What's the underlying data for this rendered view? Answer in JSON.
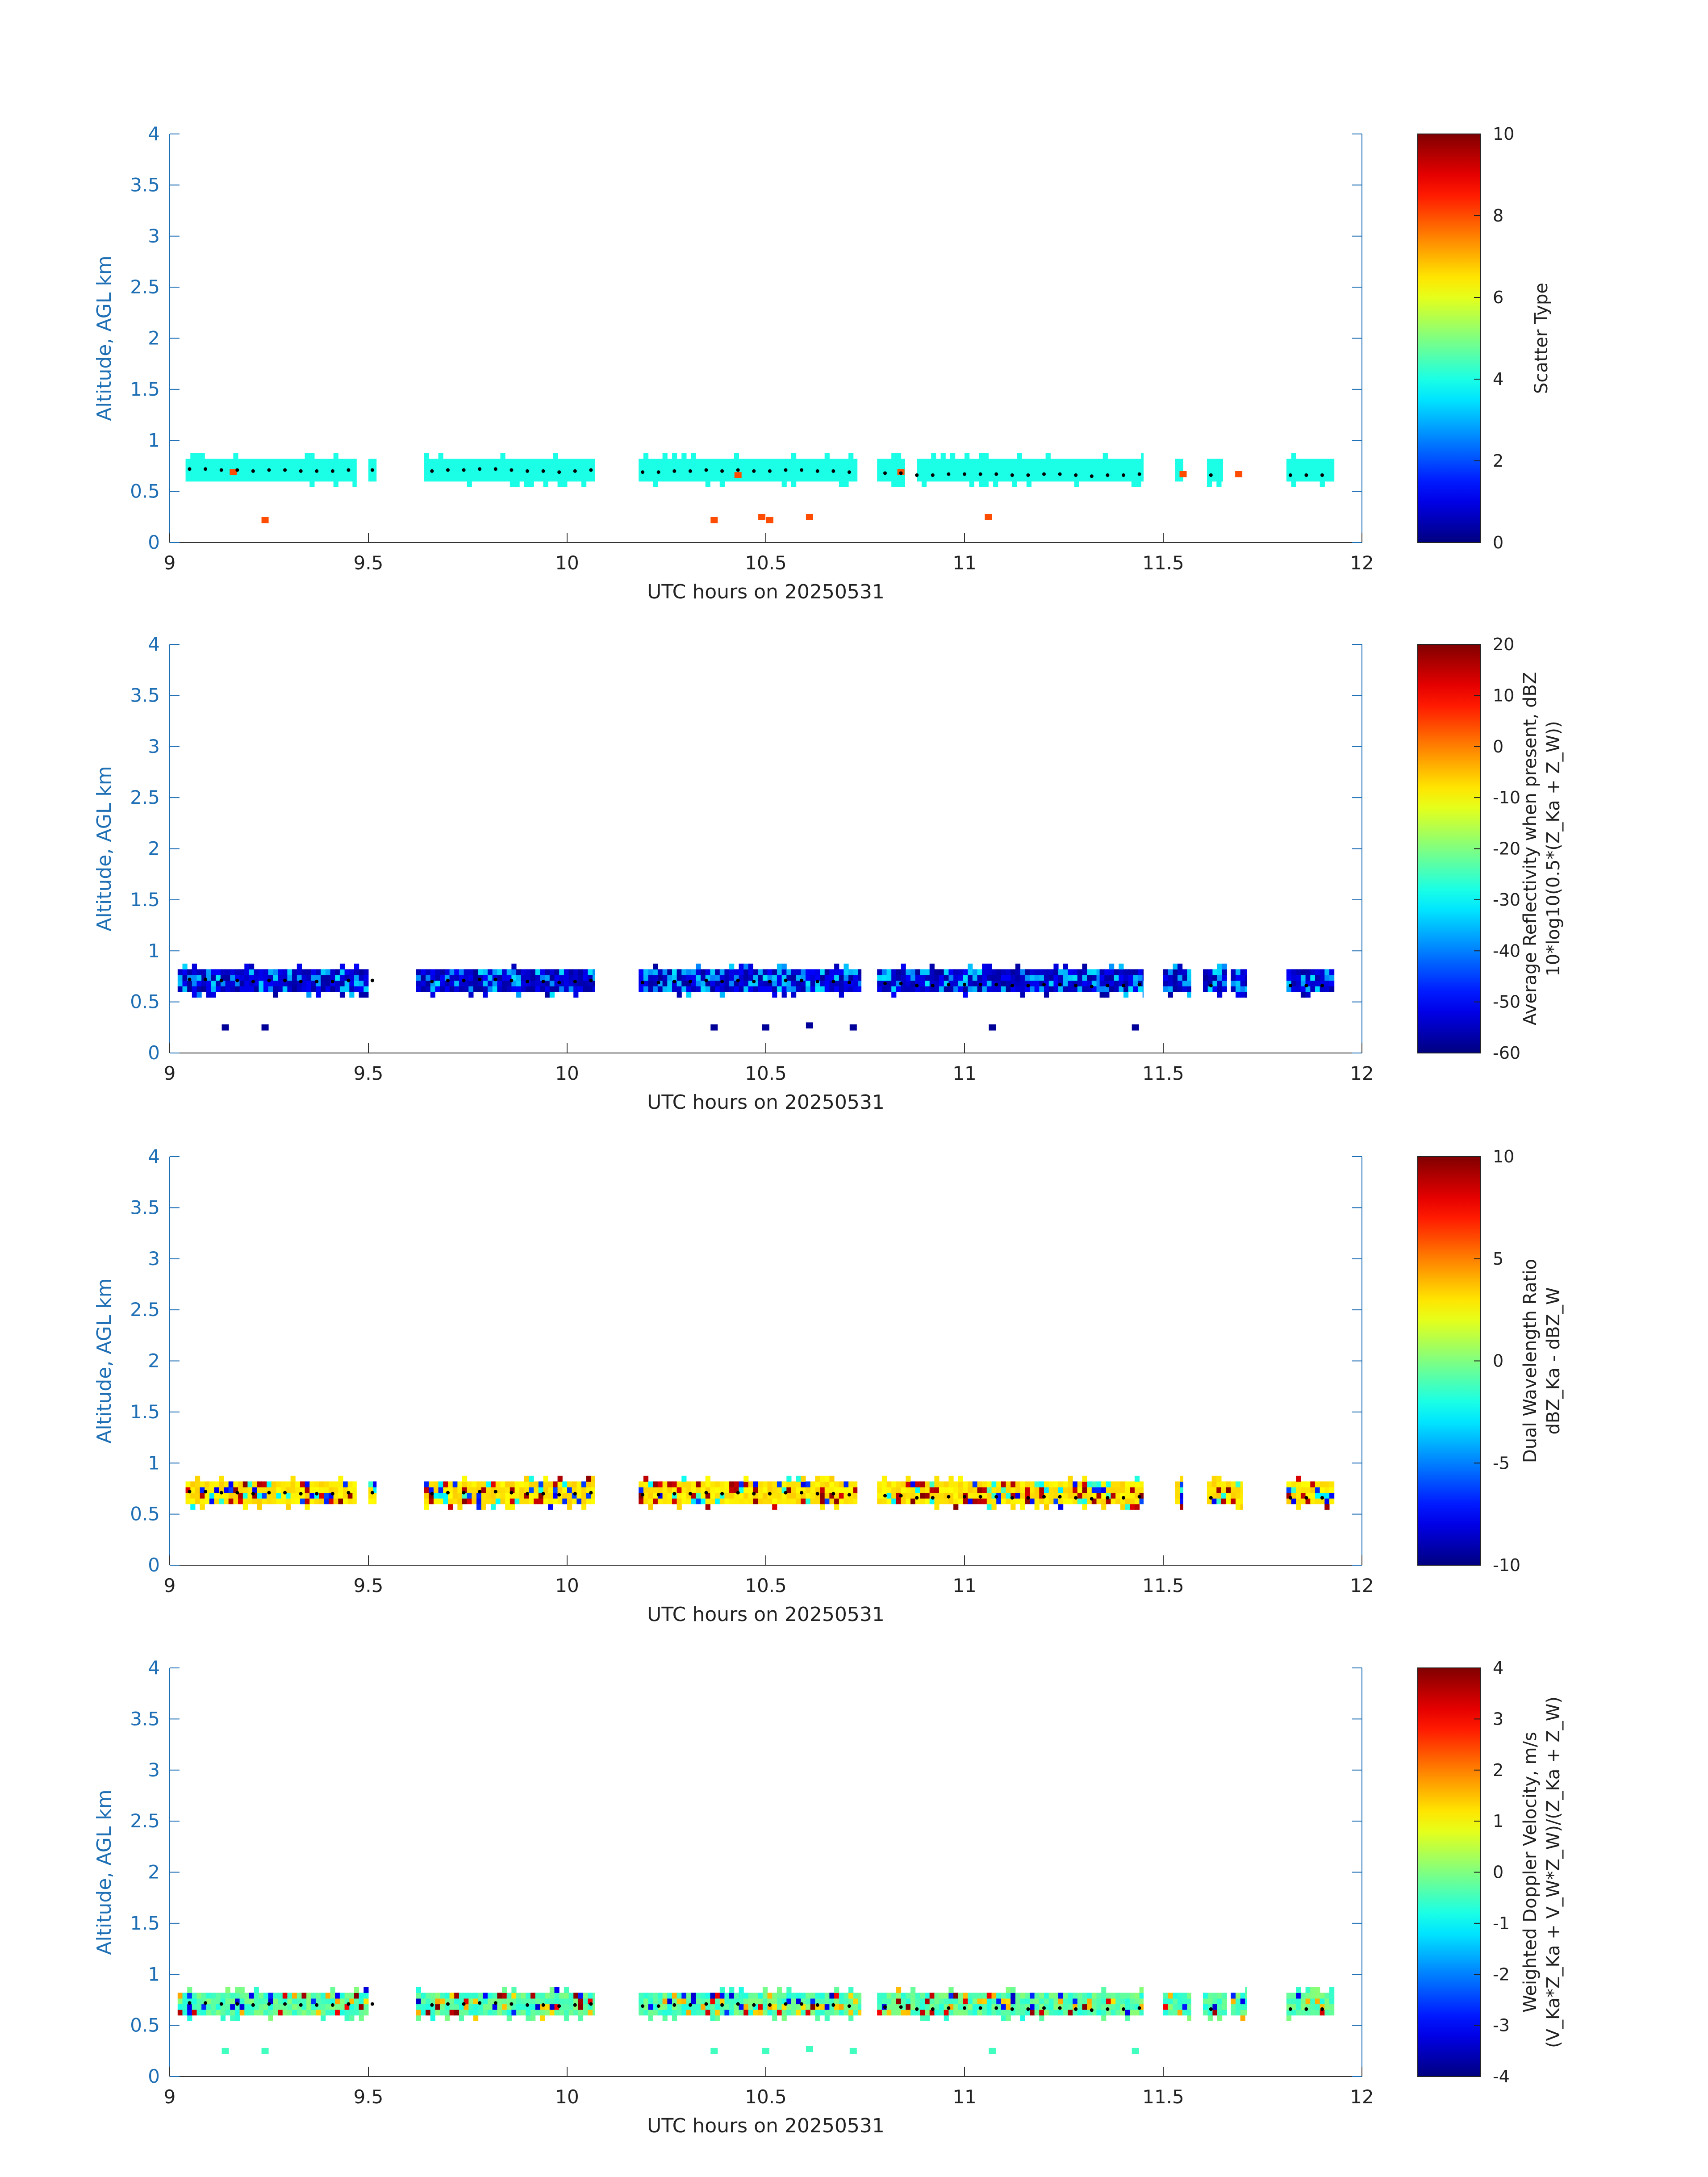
{
  "figure": {
    "x_axis_label": "UTC hours on 20250531",
    "y_axis_label": "Altitude, AGL km"
  },
  "chart_data": [
    {
      "type": "heatmap",
      "title": "",
      "xlabel": "UTC hours on 20250531",
      "ylabel": "Altitude, AGL km",
      "xlim": [
        9,
        12
      ],
      "ylim": [
        0,
        4
      ],
      "xticks": [
        "9",
        "9.5",
        "10",
        "10.5",
        "11",
        "11.5",
        "12"
      ],
      "yticks": [
        "0",
        "0.5",
        "1",
        "1.5",
        "2",
        "2.5",
        "3",
        "3.5",
        "4"
      ],
      "colorbar": {
        "label": "Scatter Type",
        "label2": "",
        "min": 0,
        "max": 10,
        "ticks": [
          "0",
          "2",
          "4",
          "6",
          "8",
          "10"
        ]
      },
      "layer": {
        "bottom": 0.6,
        "top": 0.8,
        "value": 4
      },
      "segments": [
        [
          9.04,
          9.47
        ],
        [
          9.5,
          9.52
        ],
        [
          9.64,
          10.07
        ],
        [
          10.18,
          10.73
        ],
        [
          10.78,
          10.85
        ],
        [
          10.88,
          11.45
        ],
        [
          11.53,
          11.55
        ],
        [
          11.61,
          11.65
        ],
        [
          11.81,
          11.93
        ]
      ],
      "scatter": [
        {
          "t": 9.16,
          "alt": 0.68,
          "value": 8
        },
        {
          "t": 9.24,
          "alt": 0.21,
          "value": 8
        },
        {
          "t": 10.37,
          "alt": 0.21,
          "value": 8
        },
        {
          "t": 10.43,
          "alt": 0.65,
          "value": 8
        },
        {
          "t": 10.49,
          "alt": 0.24,
          "value": 8
        },
        {
          "t": 10.51,
          "alt": 0.21,
          "value": 8
        },
        {
          "t": 10.61,
          "alt": 0.24,
          "value": 8
        },
        {
          "t": 10.84,
          "alt": 0.68,
          "value": 8
        },
        {
          "t": 11.06,
          "alt": 0.24,
          "value": 8
        },
        {
          "t": 11.55,
          "alt": 0.66,
          "value": 8
        },
        {
          "t": 11.69,
          "alt": 0.66,
          "value": 8
        }
      ]
    },
    {
      "type": "heatmap",
      "title": "",
      "xlabel": "UTC hours on 20250531",
      "ylabel": "Altitude, AGL km",
      "xlim": [
        9,
        12
      ],
      "ylim": [
        0,
        4
      ],
      "xticks": [
        "9",
        "9.5",
        "10",
        "10.5",
        "11",
        "11.5",
        "12"
      ],
      "yticks": [
        "0",
        "0.5",
        "1",
        "1.5",
        "2",
        "2.5",
        "3",
        "3.5",
        "4"
      ],
      "colorbar": {
        "label": "Average Reflectivity when present, dBZ",
        "label2": "10*log10(0.5*(Z_Ka + Z_W))",
        "min": -60,
        "max": 20,
        "ticks": [
          "-60",
          "-50",
          "-40",
          "-30",
          "-20",
          "-10",
          "0",
          "10",
          "20"
        ]
      },
      "layer": {
        "bottom": 0.6,
        "top": 0.82,
        "value": -55
      },
      "segments": [
        [
          9.02,
          9.5
        ],
        [
          9.62,
          10.07
        ],
        [
          10.18,
          10.74
        ],
        [
          10.78,
          11.34
        ],
        [
          11.34,
          11.45
        ],
        [
          11.5,
          11.57
        ],
        [
          11.6,
          11.66
        ],
        [
          11.67,
          11.71
        ],
        [
          11.81,
          11.93
        ]
      ],
      "scatter": [
        {
          "t": 9.14,
          "alt": 0.24,
          "value": -58
        },
        {
          "t": 9.24,
          "alt": 0.24,
          "value": -58
        },
        {
          "t": 10.37,
          "alt": 0.24,
          "value": -58
        },
        {
          "t": 10.5,
          "alt": 0.24,
          "value": -58
        },
        {
          "t": 10.61,
          "alt": 0.26,
          "value": -58
        },
        {
          "t": 10.72,
          "alt": 0.24,
          "value": -58
        },
        {
          "t": 11.07,
          "alt": 0.24,
          "value": -58
        },
        {
          "t": 11.43,
          "alt": 0.24,
          "value": -58
        }
      ]
    },
    {
      "type": "heatmap",
      "title": "",
      "xlabel": "UTC hours on 20250531",
      "ylabel": "Altitude, AGL km",
      "xlim": [
        9,
        12
      ],
      "ylim": [
        0,
        4
      ],
      "xticks": [
        "9",
        "9.5",
        "10",
        "10.5",
        "11",
        "11.5",
        "12"
      ],
      "yticks": [
        "0",
        "0.5",
        "1",
        "1.5",
        "2",
        "2.5",
        "3",
        "3.5",
        "4"
      ],
      "colorbar": {
        "label": "Dual Wavelength Ratio",
        "label2": "dBZ_Ka - dBZ_W",
        "min": -10,
        "max": 10,
        "ticks": [
          "-10",
          "-5",
          "0",
          "5",
          "10"
        ]
      },
      "layer": {
        "bottom": 0.6,
        "top": 0.8,
        "value": 3
      },
      "segments": [
        [
          9.04,
          9.47
        ],
        [
          9.5,
          9.52
        ],
        [
          9.64,
          10.07
        ],
        [
          10.18,
          10.73
        ],
        [
          10.78,
          11.45
        ],
        [
          11.53,
          11.55
        ],
        [
          11.61,
          11.7
        ],
        [
          11.81,
          11.93
        ]
      ],
      "scatter": []
    },
    {
      "type": "heatmap",
      "title": "",
      "xlabel": "UTC hours on 20250531",
      "ylabel": "Altitude, AGL km",
      "xlim": [
        9,
        12
      ],
      "ylim": [
        0,
        4
      ],
      "xticks": [
        "9",
        "9.5",
        "10",
        "10.5",
        "11",
        "11.5",
        "12"
      ],
      "yticks": [
        "0",
        "0.5",
        "1",
        "1.5",
        "2",
        "2.5",
        "3",
        "3.5",
        "4"
      ],
      "colorbar": {
        "label": "Weighted Doppler Velocity, m/s",
        "label2": "(V_Ka*Z_Ka + V_W*Z_W)/(Z_Ka + Z_W)",
        "min": -4,
        "max": 4,
        "ticks": [
          "-4",
          "-3",
          "-2",
          "-1",
          "0",
          "1",
          "2",
          "3",
          "4"
        ]
      },
      "layer": {
        "bottom": 0.6,
        "top": 0.82,
        "value": -0.3
      },
      "segments": [
        [
          9.02,
          9.5
        ],
        [
          9.62,
          10.07
        ],
        [
          10.18,
          10.74
        ],
        [
          10.78,
          11.45
        ],
        [
          11.5,
          11.57
        ],
        [
          11.6,
          11.66
        ],
        [
          11.67,
          11.71
        ],
        [
          11.81,
          11.93
        ]
      ],
      "scatter": [
        {
          "t": 9.14,
          "alt": 0.24,
          "value": -0.5
        },
        {
          "t": 9.24,
          "alt": 0.24,
          "value": -0.5
        },
        {
          "t": 10.37,
          "alt": 0.24,
          "value": -0.5
        },
        {
          "t": 10.5,
          "alt": 0.24,
          "value": -0.5
        },
        {
          "t": 10.61,
          "alt": 0.26,
          "value": -0.5
        },
        {
          "t": 10.72,
          "alt": 0.24,
          "value": -0.5
        },
        {
          "t": 11.07,
          "alt": 0.24,
          "value": -0.5
        },
        {
          "t": 11.43,
          "alt": 0.24,
          "value": -0.5
        }
      ]
    }
  ],
  "cloud_base": {
    "t": [
      9.05,
      9.09,
      9.13,
      9.17,
      9.21,
      9.25,
      9.29,
      9.33,
      9.37,
      9.41,
      9.45,
      9.51,
      9.66,
      9.7,
      9.74,
      9.78,
      9.82,
      9.86,
      9.9,
      9.94,
      9.98,
      10.02,
      10.06,
      10.19,
      10.23,
      10.27,
      10.31,
      10.35,
      10.39,
      10.43,
      10.47,
      10.51,
      10.55,
      10.59,
      10.63,
      10.67,
      10.71,
      10.8,
      10.84,
      10.88,
      10.92,
      10.96,
      11.0,
      11.04,
      11.08,
      11.12,
      11.16,
      11.2,
      11.24,
      11.28,
      11.32,
      11.36,
      11.4,
      11.44,
      11.62,
      11.82,
      11.86,
      11.9
    ],
    "alt": [
      0.72,
      0.72,
      0.71,
      0.71,
      0.7,
      0.71,
      0.71,
      0.7,
      0.7,
      0.7,
      0.71,
      0.71,
      0.7,
      0.71,
      0.71,
      0.72,
      0.72,
      0.71,
      0.7,
      0.7,
      0.69,
      0.7,
      0.71,
      0.69,
      0.69,
      0.7,
      0.7,
      0.71,
      0.7,
      0.71,
      0.7,
      0.7,
      0.71,
      0.71,
      0.7,
      0.7,
      0.69,
      0.68,
      0.68,
      0.66,
      0.66,
      0.67,
      0.67,
      0.67,
      0.67,
      0.66,
      0.66,
      0.67,
      0.67,
      0.66,
      0.65,
      0.66,
      0.66,
      0.67,
      0.66,
      0.66,
      0.66,
      0.66
    ]
  }
}
